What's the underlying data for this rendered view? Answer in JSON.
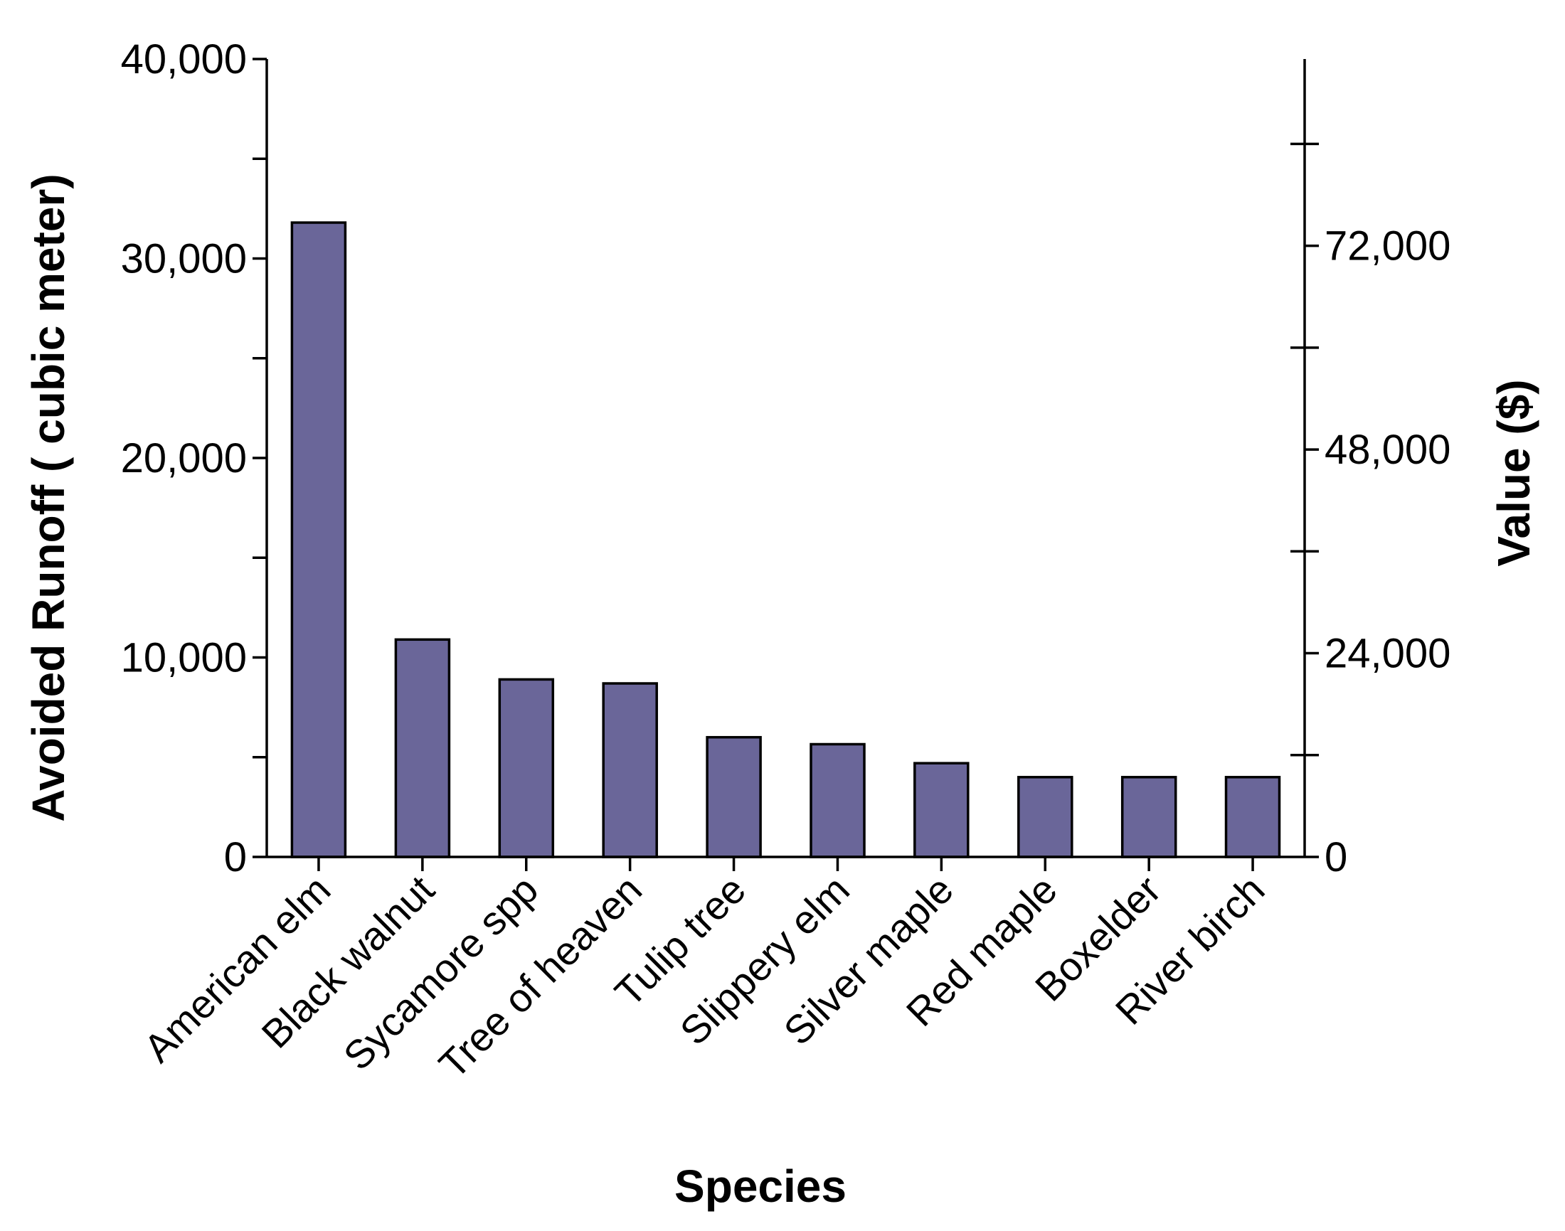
{
  "chart_data": {
    "type": "bar",
    "title": "",
    "xlabel": "Species",
    "ylabel": "Avoided Runoff ( cubic meter)",
    "y2label": "Value ($)",
    "categories": [
      "American elm",
      "Black walnut",
      "Sycamore spp",
      "Tree of heaven",
      "Tulip tree",
      "Slippery elm",
      "Silver maple",
      "Red maple",
      "Boxelder",
      "River birch"
    ],
    "values": [
      31800,
      10900,
      8900,
      8700,
      6000,
      5650,
      4700,
      4000,
      4000,
      4000
    ],
    "ylim": [
      0,
      40000
    ],
    "y2lim": [
      0,
      94000
    ],
    "yticks": [
      0,
      10000,
      20000,
      30000,
      40000
    ],
    "yticklabels": [
      "0",
      "10,000",
      "20,000",
      "30,000",
      "40,000"
    ],
    "yminor_ticks": [
      5000,
      15000,
      25000,
      35000
    ],
    "y2ticks": [
      0,
      24000,
      48000,
      72000
    ],
    "y2ticklabels": [
      "0",
      "24,000",
      "48,000",
      "72,000"
    ],
    "y2minor_ticks": [
      12000,
      36000,
      60000,
      84000
    ],
    "bar_color": "#6a6699",
    "grid": false
  }
}
